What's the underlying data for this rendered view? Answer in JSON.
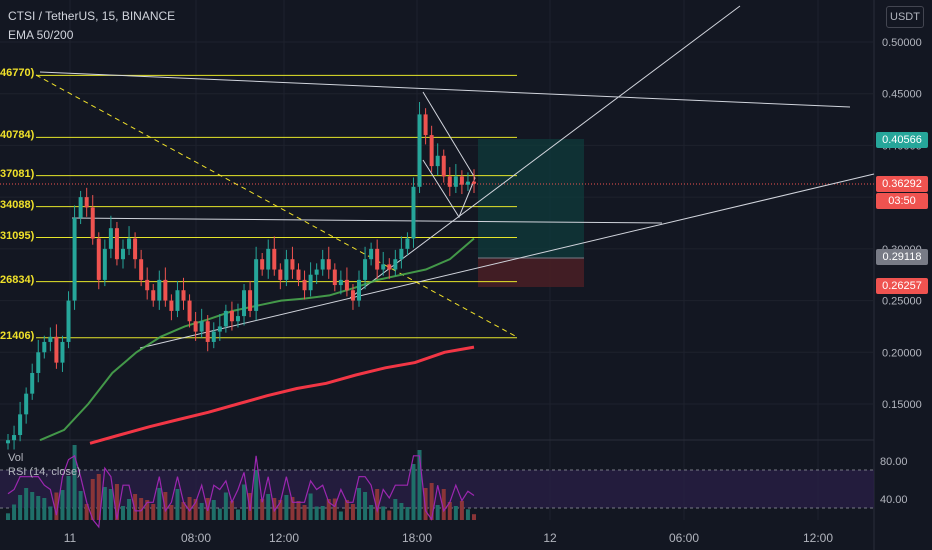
{
  "header": {
    "title": "CTSI / TetherUS, 15, BINANCE",
    "indicator": "EMA 50/200",
    "currency_button": "USDT"
  },
  "price_tags": [
    {
      "label": "0.40566",
      "color": "#26a69a"
    },
    {
      "label": "0.36292",
      "color": "#ef5350"
    },
    {
      "label": "03:50",
      "color": "#ef5350"
    },
    {
      "label": "0.29118",
      "color": "#787b86"
    },
    {
      "label": "0.26257",
      "color": "#ef5350"
    }
  ],
  "fib_labels": [
    "46770)",
    "40784)",
    "37081)",
    "34088)",
    "31095)",
    "26834)",
    "21406)"
  ],
  "lower_pane": {
    "vol_label": "Vol",
    "rsi_label": "RSI (14, close)",
    "rsi_ticks": [
      "80.00",
      "40.00"
    ]
  },
  "chart_data": {
    "type": "candlestick",
    "title": "CTSI / TetherUS, 15, BINANCE",
    "x_tick_labels": [
      "11",
      "08:00",
      "12:00",
      "18:00",
      "12",
      "06:00",
      "12:00"
    ],
    "y_tick_labels": [
      "0.50000",
      "0.45000",
      "0.40000",
      "0.35000",
      "0.30000",
      "0.25000",
      "0.20000",
      "0.15000"
    ],
    "ylim": [
      0.112,
      0.52
    ],
    "last_price": 0.36292,
    "fib_levels": [
      0.4677,
      0.40784,
      0.37081,
      0.34088,
      0.31095,
      0.26834,
      0.21406
    ],
    "close_series": [
      0.115,
      0.12,
      0.14,
      0.16,
      0.18,
      0.2,
      0.21,
      0.215,
      0.19,
      0.21,
      0.25,
      0.33,
      0.35,
      0.34,
      0.31,
      0.27,
      0.3,
      0.32,
      0.29,
      0.3,
      0.31,
      0.29,
      0.27,
      0.26,
      0.25,
      0.27,
      0.25,
      0.24,
      0.26,
      0.25,
      0.23,
      0.22,
      0.23,
      0.21,
      0.22,
      0.225,
      0.24,
      0.23,
      0.235,
      0.26,
      0.24,
      0.29,
      0.28,
      0.3,
      0.28,
      0.27,
      0.29,
      0.28,
      0.27,
      0.26,
      0.275,
      0.28,
      0.29,
      0.28,
      0.265,
      0.27,
      0.26,
      0.25,
      0.27,
      0.29,
      0.3,
      0.28,
      0.285,
      0.28,
      0.29,
      0.3,
      0.31,
      0.36,
      0.43,
      0.41,
      0.38,
      0.39,
      0.37,
      0.36,
      0.37,
      0.362,
      0.365,
      0.363
    ],
    "ema50": [
      0.115,
      0.125,
      0.15,
      0.18,
      0.2,
      0.215,
      0.225,
      0.232,
      0.24,
      0.245,
      0.25,
      0.252,
      0.255,
      0.262,
      0.27,
      0.275,
      0.28,
      0.29,
      0.31
    ],
    "ema200": [
      0.112,
      0.12,
      0.128,
      0.135,
      0.142,
      0.15,
      0.158,
      0.165,
      0.17,
      0.178,
      0.185,
      0.19,
      0.2,
      0.205
    ],
    "rsi_ticks": [
      80,
      40
    ]
  }
}
